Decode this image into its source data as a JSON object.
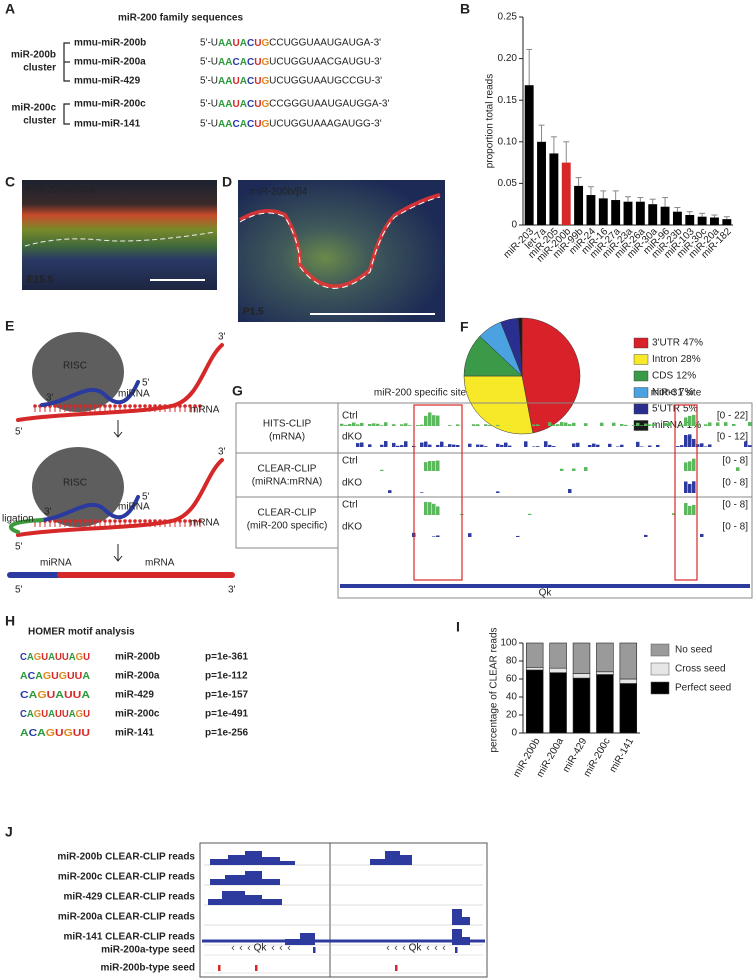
{
  "panel_labels": [
    "A",
    "B",
    "C",
    "D",
    "E",
    "F",
    "G",
    "H",
    "I",
    "J"
  ],
  "panel_a": {
    "title": "miR-200 family sequences",
    "clusters": [
      [
        "miR-200b",
        "cluster"
      ],
      [
        "miR-200c",
        "cluster"
      ]
    ],
    "rows": [
      {
        "name": "mmu-miR-200b",
        "color": "#d62828",
        "prefix": "5'-U",
        "seed": "AAUACUG",
        "rest": "CCUGGUAAUGAUGA-3'"
      },
      {
        "name": "mmu-miR-200a",
        "color": "#3a56a8",
        "prefix": "5'-U",
        "seed": "AACACUG",
        "rest": "UCUGGUAACGAUGU-3'"
      },
      {
        "name": "mmu-miR-429",
        "color": "#d62828",
        "prefix": "5'-U",
        "seed": "AAUACUG",
        "rest": "UCUGGUAAUGCCGU-3'"
      },
      {
        "name": "mmu-miR-200c",
        "color": "#d62828",
        "prefix": "5'-U",
        "seed": "AAUACUG",
        "rest": "CCGGGUAAUGAUGGA-3'"
      },
      {
        "name": "mmu-miR-141",
        "color": "#3a56a8",
        "prefix": "5'-U",
        "seed": "AACACUG",
        "rest": "UCUGGUAAAGAUGG-3'"
      }
    ]
  },
  "panel_c": {
    "stain_1": "miR-200b",
    "sep": "/",
    "stain_2": "Ecad",
    "stage": "E15.5"
  },
  "panel_d": {
    "stain_1": "miR-200b",
    "sep": "/",
    "stain_2": "β4",
    "stage": "P1.5"
  },
  "panel_e": {
    "step_1": [
      "RISC",
      "3'",
      "miRNA",
      "5'",
      "3'",
      "mRNA",
      "5'"
    ],
    "step_2": [
      "RISC",
      "ligation",
      "3'",
      "miRNA",
      "5'",
      "3'",
      "mRNA",
      "5'"
    ],
    "step_3": [
      "miRNA",
      "mRNA",
      "5'",
      "3'"
    ]
  },
  "panel_g": {
    "headers": [
      "miR-200 specific site",
      "miR-31 site"
    ],
    "groups": [
      {
        "label": [
          "HITS-CLIP",
          "(mRNA)"
        ],
        "tracks": [
          {
            "name": "Ctrl",
            "range": "[0 - 22]"
          },
          {
            "name": "dKO",
            "range": "[0 - 12]"
          }
        ]
      },
      {
        "label": [
          "CLEAR-CLIP",
          "(miRNA:mRNA)"
        ],
        "tracks": [
          {
            "name": "Ctrl",
            "range": "[0 - 8]"
          },
          {
            "name": "dKO",
            "range": "[0 - 8]"
          }
        ]
      },
      {
        "label": [
          "CLEAR-CLIP",
          "(miR-200 specific)"
        ],
        "tracks": [
          {
            "name": "Ctrl",
            "range": "[0 - 8]"
          },
          {
            "name": "dKO",
            "range": "[0 - 8]"
          }
        ]
      }
    ],
    "gene": "Qk"
  },
  "panel_h": {
    "title": "HOMER motif analysis",
    "rows": [
      {
        "logo": "CAGUAUUAGU",
        "name": "miR-200b",
        "color": "#d62828",
        "p": "p=1e-361"
      },
      {
        "logo": "ACAGUGUUA",
        "name": "miR-200a",
        "color": "#2233bb",
        "p": "p=1e-112"
      },
      {
        "logo": "CAGUAUUA",
        "name": "miR-429",
        "color": "#d62828",
        "p": "p=1e-157"
      },
      {
        "logo": "CAGUAUUAGU",
        "name": "miR-200c",
        "color": "#d62828",
        "p": "p=1e-491"
      },
      {
        "logo": "ACAGUGUU",
        "name": "miR-141",
        "color": "#2233bb",
        "p": "p=1e-256"
      }
    ]
  },
  "panel_j": {
    "rows": [
      {
        "name": "miR-200b CLEAR-CLIP reads",
        "color": "#d62828"
      },
      {
        "name": "miR-200c CLEAR-CLIP reads",
        "color": "#d62828"
      },
      {
        "name": "miR-429 CLEAR-CLIP reads",
        "color": "#d62828"
      },
      {
        "name": "miR-200a CLEAR-CLIP reads",
        "color": "#2a3a9a"
      },
      {
        "name": "miR-141 CLEAR-CLIP reads",
        "color": "#2a3a9a"
      }
    ],
    "gene": "Qk",
    "seeds": [
      {
        "name": "miR-200a-type seed",
        "color": "#2a3a9a"
      },
      {
        "name": "miR-200b-type seed",
        "color": "#d62828"
      }
    ]
  },
  "chart_data": [
    {
      "type": "bar",
      "y_label": "proportion total reads",
      "categories": [
        "miR-203",
        "let-7a",
        "miR-205",
        "miR-200b",
        "miR-99b",
        "miR-24",
        "miR-16",
        "miR-27a",
        "miR-23a",
        "miR-26a",
        "miR-30a",
        "miR-96",
        "miR-23b",
        "miR-103",
        "miR-30c",
        "miR-20a",
        "miR-182"
      ],
      "values": [
        0.168,
        0.1,
        0.086,
        0.075,
        0.047,
        0.036,
        0.032,
        0.03,
        0.028,
        0.028,
        0.025,
        0.022,
        0.016,
        0.012,
        0.01,
        0.009,
        0.007
      ],
      "errors": [
        0.043,
        0.02,
        0.02,
        0.025,
        0.01,
        0.01,
        0.009,
        0.011,
        0.006,
        0.005,
        0.006,
        0.011,
        0.005,
        0.004,
        0.004,
        0.003,
        0.003
      ],
      "colors": [
        "#000",
        "#000",
        "#000",
        "#d62828",
        "#000",
        "#000",
        "#000",
        "#000",
        "#000",
        "#000",
        "#000",
        "#000",
        "#000",
        "#000",
        "#000",
        "#000",
        "#000"
      ],
      "ylim": [
        0,
        0.25
      ],
      "yticks": [
        0,
        0.05,
        {
          "value": 0.1,
          "label": "0.10"
        },
        0.15,
        {
          "value": 0.2,
          "label": "0.20"
        },
        0.25
      ]
    },
    {
      "type": "pie",
      "categories": [
        "3'UTR",
        "Intron",
        "CDS",
        "None",
        "5'UTR",
        "miRNA"
      ],
      "values": [
        47,
        28,
        12,
        7,
        5,
        1
      ],
      "value_labels": [
        "47%",
        "28%",
        "12%",
        "7%",
        "5%",
        "1%"
      ],
      "colors": [
        "#d9212a",
        "#f7e928",
        "#3a9a48",
        "#4aa3e0",
        "#2a2f8f",
        "#1a1a1a"
      ]
    },
    {
      "type": "stacked_bar",
      "y_label": "percentage of CLEAR reads",
      "categories": [
        "miR-200b",
        "miR-200a",
        "miR-429",
        "miR-200c",
        "miR-141"
      ],
      "category_colors": [
        "#d62828",
        "#2a3a9a",
        "#d62828",
        "#d62828",
        "#2a3a9a"
      ],
      "series": [
        {
          "name": "No seed",
          "color": "#9a9a9a",
          "values": [
            27,
            28,
            34,
            32,
            40
          ]
        },
        {
          "name": "Cross seed",
          "color": "#e6e6e6",
          "values": [
            3,
            5,
            5,
            3,
            5
          ]
        },
        {
          "name": "Perfect seed",
          "color": "#000000",
          "values": [
            70,
            67,
            61,
            65,
            55
          ]
        }
      ],
      "ylim": [
        0,
        100
      ],
      "yticks": [
        0,
        20,
        40,
        60,
        80,
        100
      ]
    }
  ]
}
